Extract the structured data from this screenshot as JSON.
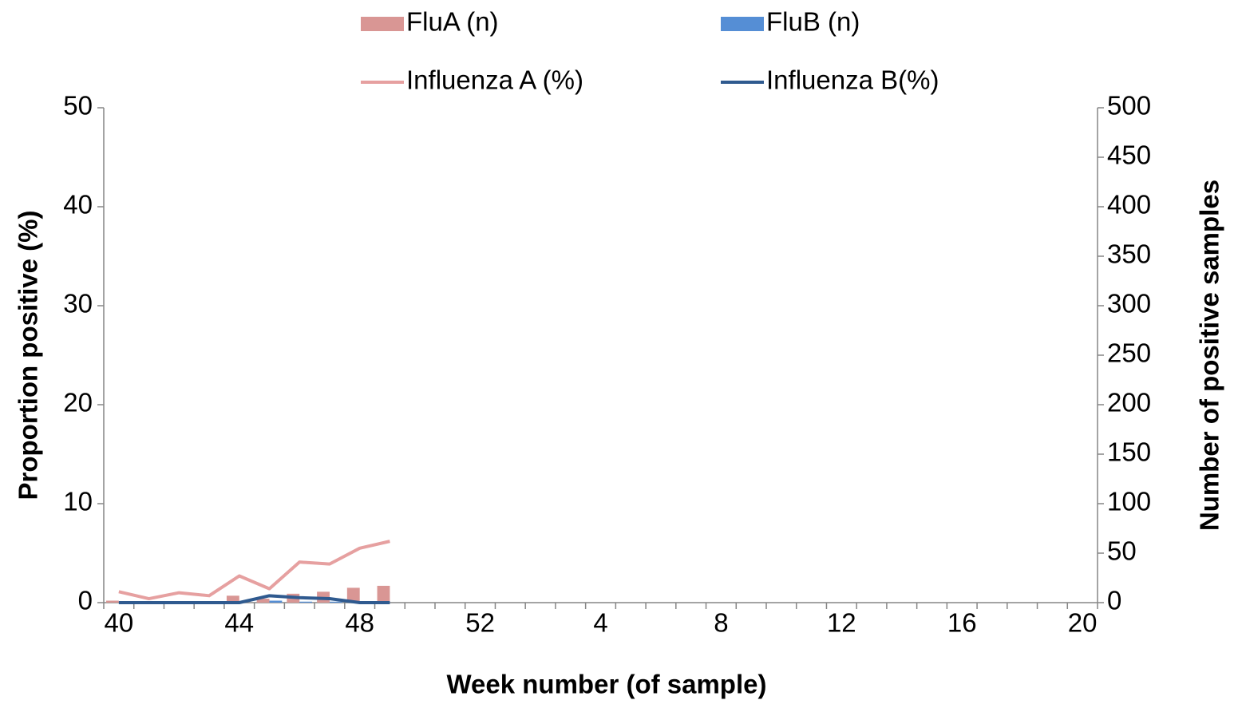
{
  "chart_data": {
    "type": "combo",
    "x_label": "Week number (of sample)",
    "y_label": "Proportion positive (%)",
    "y2_label": "Number of positive samples",
    "categories": [
      "40",
      null,
      null,
      null,
      "44",
      null,
      null,
      null,
      "48",
      null,
      null,
      null,
      "52",
      null,
      null,
      null,
      "4",
      null,
      null,
      null,
      "8",
      null,
      null,
      null,
      "12",
      null,
      null,
      null,
      "16",
      null,
      null,
      null,
      "20"
    ],
    "ylim": [
      0,
      50
    ],
    "yticks": [
      0,
      10,
      20,
      30,
      40,
      50
    ],
    "y2lim": [
      0,
      500
    ],
    "y2ticks": [
      0,
      50,
      100,
      150,
      200,
      250,
      300,
      350,
      400,
      450,
      500
    ],
    "series": [
      {
        "name": "FluA (n)",
        "type": "bar",
        "axis": "y2",
        "color": "#d99694",
        "values": [
          2,
          0,
          1,
          0,
          7,
          4,
          9,
          11,
          15,
          17,
          null,
          null,
          null,
          null,
          null,
          null,
          null,
          null,
          null,
          null,
          null,
          null,
          null,
          null,
          null,
          null,
          null,
          null,
          null,
          null,
          null,
          null,
          null
        ]
      },
      {
        "name": "FluB (n)",
        "type": "bar",
        "axis": "y2",
        "color": "#558ed5",
        "values": [
          0,
          0,
          0,
          0,
          0,
          2,
          1,
          1,
          0,
          0,
          null,
          null,
          null,
          null,
          null,
          null,
          null,
          null,
          null,
          null,
          null,
          null,
          null,
          null,
          null,
          null,
          null,
          null,
          null,
          null,
          null,
          null,
          null
        ]
      },
      {
        "name": "Influenza A (%)",
        "type": "line",
        "color": "#e6a0a0",
        "values": [
          1.1,
          0.4,
          1.0,
          0.7,
          2.7,
          1.4,
          4.1,
          3.9,
          5.5,
          6.2,
          null,
          null,
          null,
          null,
          null,
          null,
          null,
          null,
          null,
          null,
          null,
          null,
          null,
          null,
          null,
          null,
          null,
          null,
          null,
          null,
          null,
          null,
          null
        ]
      },
      {
        "name": "Influenza B(%)",
        "type": "line",
        "color": "#2f5a8f",
        "values": [
          0,
          0,
          0,
          0,
          0,
          0.7,
          0.5,
          0.4,
          0,
          0,
          null,
          null,
          null,
          null,
          null,
          null,
          null,
          null,
          null,
          null,
          null,
          null,
          null,
          null,
          null,
          null,
          null,
          null,
          null,
          null,
          null,
          null,
          null
        ]
      }
    ]
  }
}
